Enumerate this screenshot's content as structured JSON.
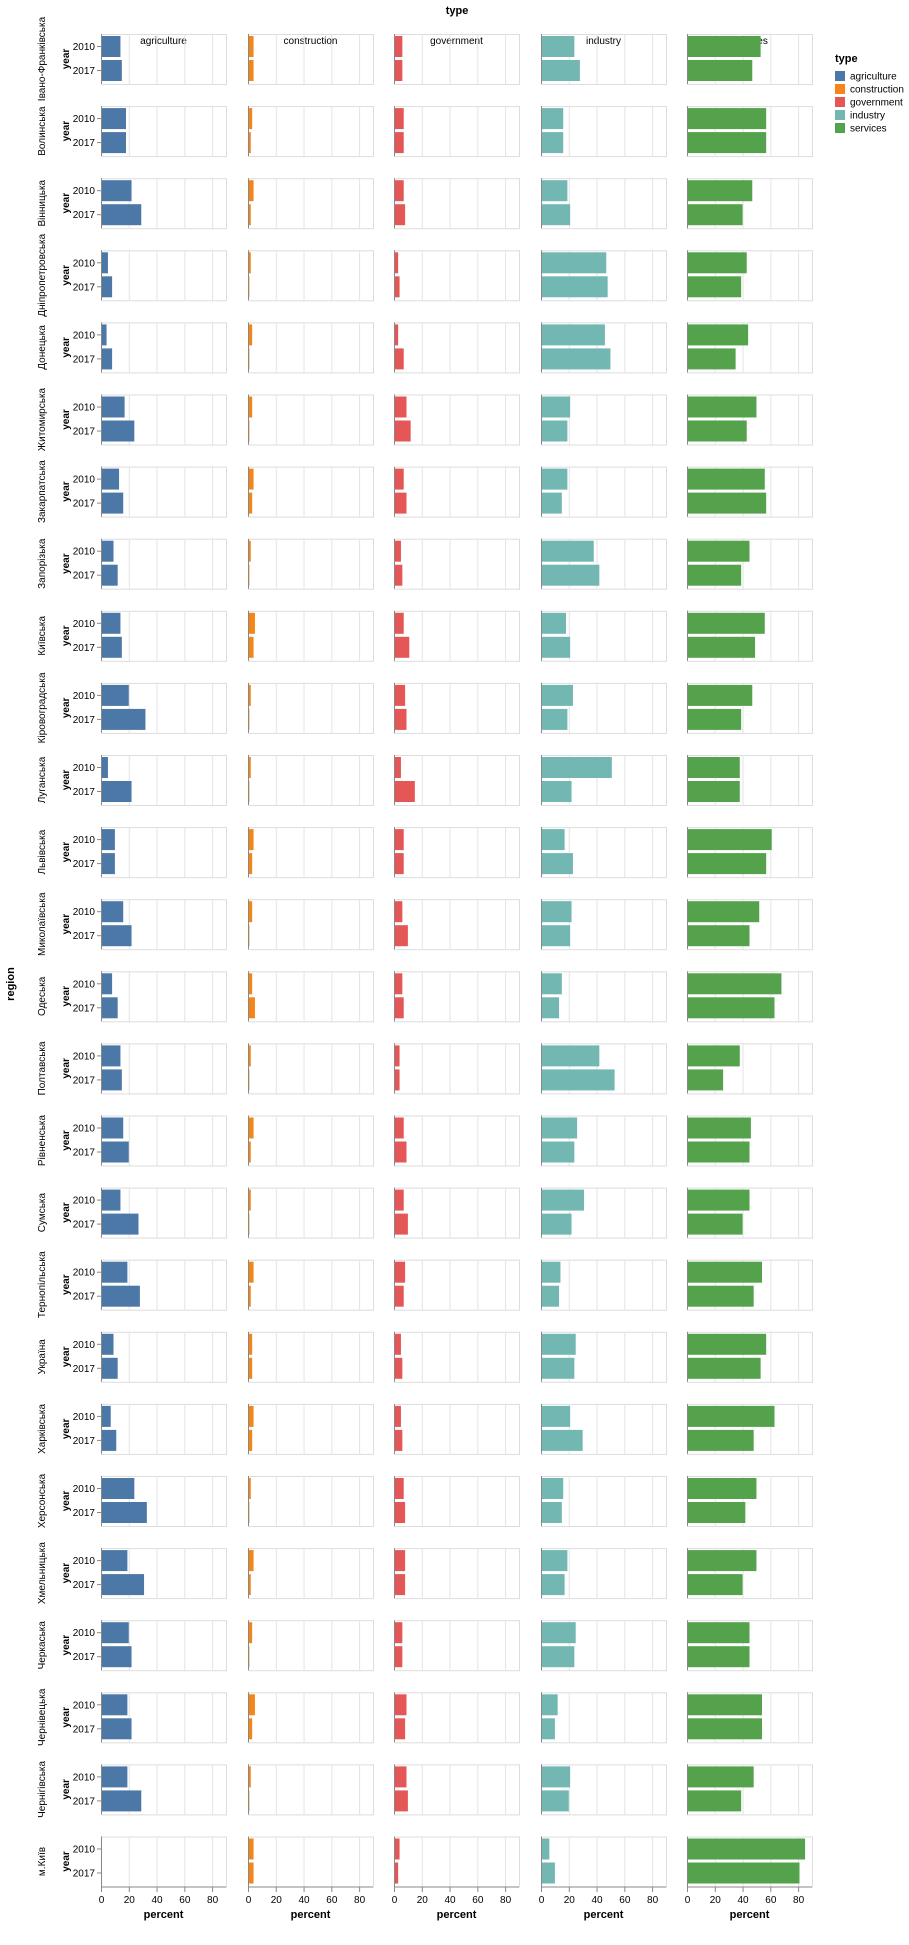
{
  "chart_data": {
    "type": "bar",
    "orientation": "horizontal",
    "title": "type",
    "column_facet": "type",
    "row_facet": "region",
    "xlabel": "percent",
    "ylabel": "year",
    "row_facet_title": "region",
    "xlim": [
      0,
      90
    ],
    "xticks": [
      0,
      20,
      40,
      60,
      80
    ],
    "tick_labels": [
      "0",
      "20",
      "40",
      "60",
      "80"
    ],
    "years": [
      "2010",
      "2017"
    ],
    "grid": true,
    "legend": {
      "title": "type",
      "position": "top-right",
      "items": [
        {
          "label": "agriculture",
          "color": "#4c78a8"
        },
        {
          "label": "construction",
          "color": "#f58518"
        },
        {
          "label": "government",
          "color": "#e45756"
        },
        {
          "label": "industry",
          "color": "#72b7b2"
        },
        {
          "label": "services",
          "color": "#54a24b"
        }
      ]
    },
    "types": [
      "agriculture",
      "construction",
      "government",
      "industry",
      "services"
    ],
    "colors": [
      "#4c78a8",
      "#f58518",
      "#e45756",
      "#72b7b2",
      "#54a24b"
    ],
    "regions": [
      {
        "name": "Івано-Франківська",
        "values": [
          [
            14,
            15
          ],
          [
            4,
            4
          ],
          [
            6,
            6
          ],
          [
            24,
            28
          ],
          [
            53,
            47
          ]
        ]
      },
      {
        "name": "Волинська",
        "values": [
          [
            18,
            18
          ],
          [
            3,
            2
          ],
          [
            7,
            7
          ],
          [
            16,
            16
          ],
          [
            57,
            57
          ]
        ]
      },
      {
        "name": "Вінницька",
        "values": [
          [
            22,
            29
          ],
          [
            4,
            2
          ],
          [
            7,
            8
          ],
          [
            19,
            21
          ],
          [
            47,
            40
          ]
        ]
      },
      {
        "name": "Дніпропетровська",
        "values": [
          [
            5,
            8
          ],
          [
            2,
            1
          ],
          [
            3,
            4
          ],
          [
            47,
            48
          ],
          [
            43,
            39
          ]
        ]
      },
      {
        "name": "Донецька",
        "values": [
          [
            4,
            8
          ],
          [
            3,
            1
          ],
          [
            3,
            7
          ],
          [
            46,
            50
          ],
          [
            44,
            35
          ]
        ]
      },
      {
        "name": "Житомирська",
        "values": [
          [
            17,
            24
          ],
          [
            3,
            1
          ],
          [
            9,
            12
          ],
          [
            21,
            19
          ],
          [
            50,
            43
          ]
        ]
      },
      {
        "name": "Закарпатська",
        "values": [
          [
            13,
            16
          ],
          [
            4,
            3
          ],
          [
            7,
            9
          ],
          [
            19,
            15
          ],
          [
            56,
            57
          ]
        ]
      },
      {
        "name": "Запорізька",
        "values": [
          [
            9,
            12
          ],
          [
            2,
            1
          ],
          [
            5,
            6
          ],
          [
            38,
            42
          ],
          [
            45,
            39
          ]
        ]
      },
      {
        "name": "Київська",
        "values": [
          [
            14,
            15
          ],
          [
            5,
            4
          ],
          [
            7,
            11
          ],
          [
            18,
            21
          ],
          [
            56,
            49
          ]
        ]
      },
      {
        "name": "Кіровоградська",
        "values": [
          [
            20,
            32
          ],
          [
            2,
            1
          ],
          [
            8,
            9
          ],
          [
            23,
            19
          ],
          [
            47,
            39
          ]
        ]
      },
      {
        "name": "Луганська",
        "values": [
          [
            5,
            22
          ],
          [
            2,
            1
          ],
          [
            5,
            15
          ],
          [
            51,
            22
          ],
          [
            38,
            38
          ]
        ]
      },
      {
        "name": "Львівська",
        "values": [
          [
            10,
            10
          ],
          [
            4,
            3
          ],
          [
            7,
            7
          ],
          [
            17,
            23
          ],
          [
            61,
            57
          ]
        ]
      },
      {
        "name": "Миколаївська",
        "values": [
          [
            16,
            22
          ],
          [
            3,
            1
          ],
          [
            6,
            10
          ],
          [
            22,
            21
          ],
          [
            52,
            45
          ]
        ]
      },
      {
        "name": "Одеська",
        "values": [
          [
            8,
            12
          ],
          [
            3,
            5
          ],
          [
            6,
            7
          ],
          [
            15,
            13
          ],
          [
            68,
            63
          ]
        ]
      },
      {
        "name": "Полтавська",
        "values": [
          [
            14,
            15
          ],
          [
            2,
            1
          ],
          [
            4,
            4
          ],
          [
            42,
            53
          ],
          [
            38,
            26
          ]
        ]
      },
      {
        "name": "Рівненська",
        "values": [
          [
            16,
            20
          ],
          [
            4,
            2
          ],
          [
            7,
            9
          ],
          [
            26,
            24
          ],
          [
            46,
            45
          ]
        ]
      },
      {
        "name": "Сумська",
        "values": [
          [
            14,
            27
          ],
          [
            2,
            1
          ],
          [
            7,
            10
          ],
          [
            31,
            22
          ],
          [
            45,
            40
          ]
        ]
      },
      {
        "name": "Тернопільська",
        "values": [
          [
            19,
            28
          ],
          [
            4,
            2
          ],
          [
            8,
            7
          ],
          [
            14,
            13
          ],
          [
            54,
            48
          ]
        ]
      },
      {
        "name": "Україна",
        "values": [
          [
            9,
            12
          ],
          [
            3,
            3
          ],
          [
            5,
            6
          ],
          [
            25,
            24
          ],
          [
            57,
            53
          ]
        ]
      },
      {
        "name": "Харківська",
        "values": [
          [
            7,
            11
          ],
          [
            4,
            3
          ],
          [
            5,
            6
          ],
          [
            21,
            30
          ],
          [
            63,
            48
          ]
        ]
      },
      {
        "name": "Херсонська",
        "values": [
          [
            24,
            33
          ],
          [
            2,
            1
          ],
          [
            7,
            8
          ],
          [
            16,
            15
          ],
          [
            50,
            42
          ]
        ]
      },
      {
        "name": "Хмельницька",
        "values": [
          [
            19,
            31
          ],
          [
            4,
            2
          ],
          [
            8,
            8
          ],
          [
            19,
            17
          ],
          [
            50,
            40
          ]
        ]
      },
      {
        "name": "Черкаська",
        "values": [
          [
            20,
            22
          ],
          [
            3,
            1
          ],
          [
            6,
            6
          ],
          [
            25,
            24
          ],
          [
            45,
            45
          ]
        ]
      },
      {
        "name": "Чернівецька",
        "values": [
          [
            19,
            22
          ],
          [
            5,
            3
          ],
          [
            9,
            8
          ],
          [
            12,
            10
          ],
          [
            54,
            54
          ]
        ]
      },
      {
        "name": "Чернігівська",
        "values": [
          [
            19,
            29
          ],
          [
            2,
            1
          ],
          [
            9,
            10
          ],
          [
            21,
            20
          ],
          [
            48,
            39
          ]
        ]
      },
      {
        "name": "м.Київ",
        "values": [
          [
            0,
            0
          ],
          [
            4,
            4
          ],
          [
            4,
            3
          ],
          [
            6,
            10
          ],
          [
            85,
            81
          ]
        ]
      }
    ]
  }
}
